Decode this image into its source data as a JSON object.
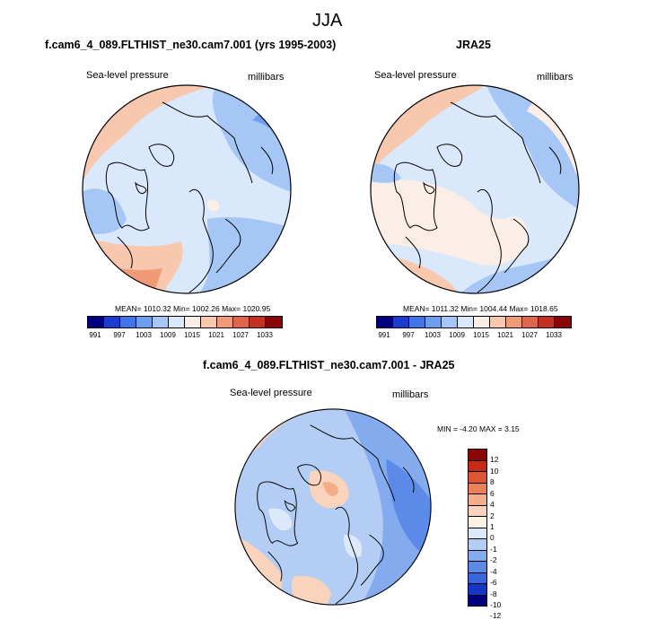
{
  "season": "JJA",
  "variable_label": "Sea-level pressure",
  "units_label": "millibars",
  "colors": {
    "abs_levels": [
      "#00007e",
      "#1c3ccf",
      "#3f75e6",
      "#6d9ef0",
      "#a6c7f6",
      "#d9e8fb",
      "#fbeee6",
      "#f8c8ae",
      "#f19a78",
      "#e0664b",
      "#c23121",
      "#8a0606"
    ],
    "diff_levels": [
      "#00007e",
      "#1636c9",
      "#3866e1",
      "#5b8ae9",
      "#85abef",
      "#b3cdf5",
      "#dce9fb",
      "#fdf1e6",
      "#f9d3bb",
      "#f4ad88",
      "#ec8158",
      "#de5534",
      "#c42a16",
      "#8a0606"
    ],
    "land_line": "#000000",
    "ocean_blue": "#d9e8fb",
    "mid_blue": "#a6c7f6",
    "deep_blue": "#6d9ef0",
    "warm": "#f8c8ae",
    "warm_deep": "#f19a78"
  },
  "chart_data": [
    {
      "type": "heatmap",
      "projection": "polar-stereographic",
      "title": "f.cam6_4_089.FLTHIST_ne30.cam7.001 (yrs 1995-2003)",
      "left_label": "Sea-level pressure",
      "right_label": "millibars",
      "stats": {
        "mean": 1010.32,
        "min": 1002.26,
        "max": 1020.95
      },
      "stats_text": "MEAN= 1010.32  Min= 1002.26  Max= 1020.95",
      "colorbar_ticks": [
        "991",
        "997",
        "1003",
        "1009",
        "1015",
        "1021",
        "1027",
        "1033"
      ]
    },
    {
      "type": "heatmap",
      "projection": "polar-stereographic",
      "title": "JRA25",
      "left_label": "Sea-level pressure",
      "right_label": "millibars",
      "stats": {
        "mean": 1011.32,
        "min": 1004.44,
        "max": 1018.65
      },
      "stats_text": "MEAN= 1011.32  Min= 1004.44  Max= 1018.65",
      "colorbar_ticks": [
        "991",
        "997",
        "1003",
        "1009",
        "1015",
        "1021",
        "1027",
        "1033"
      ]
    },
    {
      "type": "heatmap",
      "projection": "polar-stereographic",
      "title": "f.cam6_4_089.FLTHIST_ne30.cam7.001 - JRA25",
      "left_label": "Sea-level pressure",
      "right_label": "millibars",
      "stats": {
        "min": -4.2,
        "max": 3.15
      },
      "stats_text": "MIN =  -4.20 MAX =   3.15",
      "colorbar_ticks": [
        "12",
        "10",
        "8",
        "6",
        "4",
        "2",
        "1",
        "0",
        "-1",
        "-2",
        "-4",
        "-6",
        "-8",
        "-10",
        "-12"
      ]
    }
  ]
}
